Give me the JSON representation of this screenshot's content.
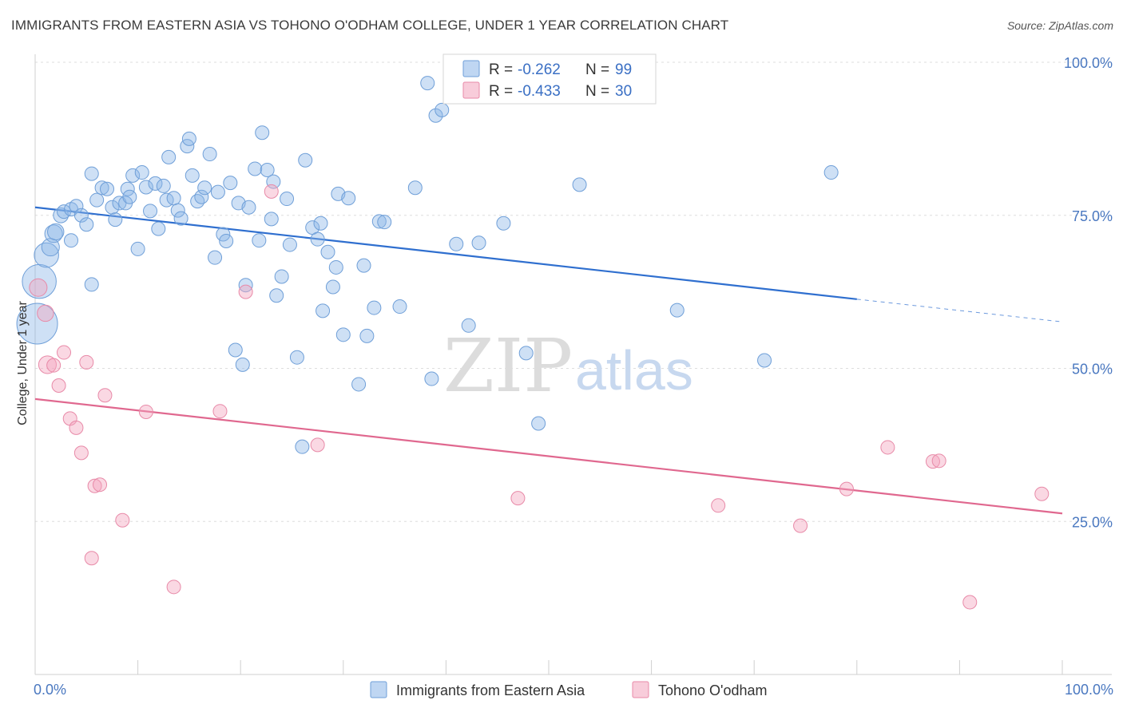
{
  "title": "IMMIGRANTS FROM EASTERN ASIA VS TOHONO O'ODHAM COLLEGE, UNDER 1 YEAR CORRELATION CHART",
  "source": "Source: ZipAtlas.com",
  "watermark": {
    "zip": "ZIP",
    "atlas": "atlas"
  },
  "legend_top": [
    {
      "r_label": "R = ",
      "r_value": "-0.262",
      "n_label": "N = ",
      "n_value": "99",
      "color": "#8ab4e8"
    },
    {
      "r_label": "R = ",
      "r_value": "-0.433",
      "n_label": "N = ",
      "n_value": "30",
      "color": "#f2a3bc"
    }
  ],
  "chart_data": {
    "type": "scatter",
    "ylabel": "College, Under 1 year",
    "xlim": [
      0,
      100
    ],
    "ylim": [
      0,
      100
    ],
    "x_tick_labels": [
      "0.0%",
      "100.0%"
    ],
    "y_ticks": [
      {
        "value": 25,
        "label": "25.0%"
      },
      {
        "value": 50,
        "label": "50.0%"
      },
      {
        "value": 75,
        "label": "75.0%"
      },
      {
        "value": 100,
        "label": "100.0%"
      }
    ],
    "grid": "horizontal dashed",
    "series": [
      {
        "name": "Immigrants from Eastern Asia",
        "color": "#8ab4e8",
        "stroke": "#6f9fd8",
        "trend": {
          "x_start": 0,
          "y_start": 76.3,
          "x_end_solid": 80,
          "y_end_solid": 61.3,
          "x_end": 100,
          "y_end": 57.6,
          "color": "#2f6fcf"
        },
        "points": [
          [
            0.2,
            57.3,
            3
          ],
          [
            0.4,
            64.2,
            2.5
          ],
          [
            1.1,
            68.5,
            1.8
          ],
          [
            1.5,
            69.8,
            1.3
          ],
          [
            1.8,
            72,
            1.3
          ],
          [
            2,
            72.3,
            1.2
          ],
          [
            2.5,
            75,
            1.1
          ],
          [
            2.8,
            75.6,
            1
          ],
          [
            3.5,
            76,
            1
          ],
          [
            4,
            76.5,
            1
          ],
          [
            3.5,
            70.9,
            1
          ],
          [
            4.5,
            75,
            1
          ],
          [
            5,
            73.5,
            1
          ],
          [
            5.5,
            63.7,
            1
          ],
          [
            5.5,
            81.8,
            1
          ],
          [
            6,
            77.5,
            1
          ],
          [
            6.5,
            79.5,
            1
          ],
          [
            7,
            79.3,
            1
          ],
          [
            7.5,
            76.3,
            1
          ],
          [
            7.8,
            74.3,
            1
          ],
          [
            8.2,
            77,
            1
          ],
          [
            8.8,
            77,
            1
          ],
          [
            9,
            79.3,
            1
          ],
          [
            9.2,
            78,
            1
          ],
          [
            9.5,
            81.5,
            1
          ],
          [
            10,
            69.5,
            1
          ],
          [
            10.4,
            82,
            1
          ],
          [
            10.8,
            79.6,
            1
          ],
          [
            11.2,
            75.7,
            1
          ],
          [
            11.7,
            80.2,
            1
          ],
          [
            12,
            72.8,
            1
          ],
          [
            12.5,
            79.8,
            1
          ],
          [
            12.8,
            77.5,
            1
          ],
          [
            13,
            84.5,
            1
          ],
          [
            13.5,
            77.8,
            1
          ],
          [
            13.9,
            75.8,
            1
          ],
          [
            14.2,
            74.5,
            1
          ],
          [
            14.8,
            86.3,
            1
          ],
          [
            15,
            87.5,
            1
          ],
          [
            15.3,
            81.5,
            1
          ],
          [
            15.8,
            77.3,
            1
          ],
          [
            16.2,
            78,
            1
          ],
          [
            16.5,
            79.5,
            1
          ],
          [
            17,
            85,
            1
          ],
          [
            17.5,
            68.1,
            1
          ],
          [
            17.8,
            78.8,
            1
          ],
          [
            18.3,
            71.9,
            1
          ],
          [
            18.6,
            70.8,
            1
          ],
          [
            19,
            80.3,
            1
          ],
          [
            19.5,
            53,
            1
          ],
          [
            19.8,
            77,
            1
          ],
          [
            20.2,
            50.6,
            1
          ],
          [
            20.5,
            63.6,
            1
          ],
          [
            20.8,
            76.3,
            1
          ],
          [
            21.4,
            82.6,
            1
          ],
          [
            21.8,
            70.9,
            1
          ],
          [
            22.1,
            88.5,
            1
          ],
          [
            22.6,
            82.4,
            1
          ],
          [
            23,
            74.4,
            1
          ],
          [
            23.2,
            80.5,
            1
          ],
          [
            23.5,
            61.9,
            1
          ],
          [
            24,
            65,
            1
          ],
          [
            24.8,
            70.2,
            1
          ],
          [
            24.5,
            77.7,
            1
          ],
          [
            25.5,
            51.8,
            1
          ],
          [
            26,
            37.2,
            1
          ],
          [
            26.3,
            84,
            1
          ],
          [
            27,
            73,
            1
          ],
          [
            27.5,
            71.1,
            1
          ],
          [
            27.8,
            73.7,
            1
          ],
          [
            28,
            59.4,
            1
          ],
          [
            28.5,
            69,
            1
          ],
          [
            29,
            63.3,
            1
          ],
          [
            29.3,
            66.5,
            1
          ],
          [
            29.5,
            78.5,
            1
          ],
          [
            30,
            55.5,
            1
          ],
          [
            30.5,
            77.8,
            1
          ],
          [
            31.5,
            47.4,
            1
          ],
          [
            32,
            66.8,
            1
          ],
          [
            32.3,
            55.3,
            1
          ],
          [
            33,
            59.9,
            1
          ],
          [
            33.5,
            74,
            1
          ],
          [
            34,
            73.9,
            1
          ],
          [
            35.5,
            60.1,
            1
          ],
          [
            37,
            79.5,
            1
          ],
          [
            38.2,
            96.6,
            1
          ],
          [
            38.6,
            48.3,
            1
          ],
          [
            39,
            91.3,
            1
          ],
          [
            39.6,
            92.2,
            1
          ],
          [
            41,
            70.3,
            1
          ],
          [
            42.2,
            57,
            1
          ],
          [
            43.2,
            70.5,
            1
          ],
          [
            45.6,
            73.7,
            1
          ],
          [
            47.8,
            52.5,
            1
          ],
          [
            49,
            41,
            1
          ],
          [
            53,
            80,
            1
          ],
          [
            62.5,
            59.5,
            1
          ],
          [
            71,
            51.3,
            1
          ],
          [
            77.5,
            82,
            1
          ]
        ]
      },
      {
        "name": "Tohono O'odham",
        "color": "#f2a3bc",
        "stroke": "#e88aa8",
        "trend": {
          "x_start": 0,
          "y_start": 45,
          "x_end_solid": 100,
          "y_end_solid": 26.3,
          "color": "#e0688f"
        },
        "points": [
          [
            0.3,
            63.2,
            1.3
          ],
          [
            1,
            59,
            1.2
          ],
          [
            1.2,
            50.6,
            1.3
          ],
          [
            1.8,
            50.5,
            1
          ],
          [
            2.3,
            47.2,
            1
          ],
          [
            2.8,
            52.6,
            1
          ],
          [
            3.4,
            41.8,
            1
          ],
          [
            4,
            40.3,
            1
          ],
          [
            4.5,
            36.2,
            1
          ],
          [
            5,
            51,
            1
          ],
          [
            5.5,
            19,
            1
          ],
          [
            5.8,
            30.8,
            1
          ],
          [
            6.3,
            31,
            1
          ],
          [
            6.8,
            45.6,
            1
          ],
          [
            8.5,
            25.2,
            1
          ],
          [
            10.8,
            42.9,
            1
          ],
          [
            13.5,
            14.3,
            1
          ],
          [
            18,
            43,
            1
          ],
          [
            20.5,
            62.5,
            1
          ],
          [
            23,
            78.9,
            1
          ],
          [
            27.5,
            37.5,
            1
          ],
          [
            47,
            28.8,
            1
          ],
          [
            66.5,
            27.6,
            1
          ],
          [
            74.5,
            24.3,
            1
          ],
          [
            79,
            30.3,
            1
          ],
          [
            83,
            37.1,
            1
          ],
          [
            87.4,
            34.8,
            1
          ],
          [
            88,
            34.9,
            1
          ],
          [
            91,
            11.8,
            1
          ],
          [
            98,
            29.5,
            1
          ]
        ]
      }
    ]
  }
}
